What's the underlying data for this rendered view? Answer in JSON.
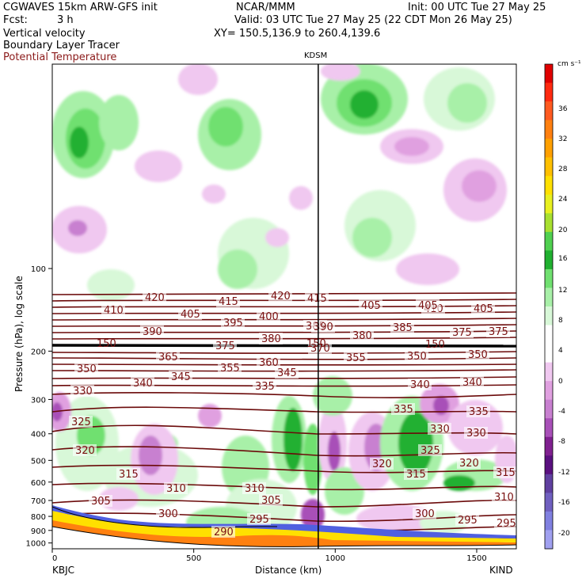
{
  "header": {
    "model": "CGWAVES 15km ARW-GFS init",
    "fcst_label": "Fcst:",
    "fcst_value": "3 h",
    "org": "NCAR/MMM",
    "init": "Init: 00 UTC Tue 27 May 25",
    "valid": "Valid: 03 UTC Tue 27 May 25 (22 CDT Mon 26 May 25)",
    "xy": "XY= 150.5,136.9 to 260.4,139.6",
    "field1": "Vertical velocity",
    "field2": "Boundary Layer Tracer",
    "field3": "Potential Temperature",
    "field3_color": "#8b1a1a"
  },
  "chart_data": {
    "type": "heatmap",
    "title": "",
    "station_top": "KDSM",
    "xlabel": "Distance (km)",
    "ylabel": "Pressure (hPa), log scale",
    "x_ticks": [
      "0",
      "500",
      "1000",
      "1500"
    ],
    "x_tick_values": [
      0,
      500,
      1000,
      1500
    ],
    "xlim": [
      0,
      1640
    ],
    "y_ticks": [
      "100",
      "200",
      "300",
      "400",
      "500",
      "600",
      "700",
      "800",
      "900",
      "1000"
    ],
    "y_tick_values": [
      100,
      200,
      300,
      400,
      500,
      600,
      700,
      800,
      900,
      1000
    ],
    "ylim": [
      1050,
      18
    ],
    "yscale": "log",
    "left_station": "KBJC",
    "right_station": "KIND",
    "station_x": 940,
    "colorbar": {
      "unit": "cm s⁻¹",
      "labels": [
        "36",
        "32",
        "28",
        "24",
        "20",
        "16",
        "12",
        "8",
        "4",
        "0",
        "-4",
        "-8",
        "-12",
        "-16",
        "-20"
      ],
      "colors": [
        "#e00000",
        "#ff2a10",
        "#ff5a20",
        "#ff8010",
        "#ffa000",
        "#ffc000",
        "#ffe000",
        "#e8f020",
        "#a8e030",
        "#50d050",
        "#20b030",
        "#70e070",
        "#a8f0a8",
        "#d8f8d8",
        "#ffffff",
        "#ffffff",
        "#f0c8f0",
        "#e0a0e0",
        "#c880d0",
        "#a850b8",
        "#802090",
        "#5a1080",
        "#6040a0",
        "#7060c0",
        "#8080e0",
        "#a0a0f0"
      ]
    },
    "isentrope_labels": [
      "420",
      "415",
      "420",
      "415",
      "410",
      "405",
      "405",
      "410",
      "405",
      "405",
      "395",
      "400",
      "390",
      "385",
      "375",
      "375",
      "380",
      "380",
      "385",
      "370",
      "375",
      "390",
      "365",
      "360",
      "355",
      "355",
      "350",
      "350",
      "350",
      "345",
      "340",
      "345",
      "340",
      "340",
      "335",
      "330",
      "335",
      "335",
      "325",
      "330",
      "330",
      "320",
      "325",
      "320",
      "320",
      "315",
      "315",
      "315",
      "310",
      "310",
      "310",
      "305",
      "305",
      "300",
      "300",
      "295",
      "295",
      "290",
      "295",
      "150",
      "150",
      "150"
    ]
  }
}
